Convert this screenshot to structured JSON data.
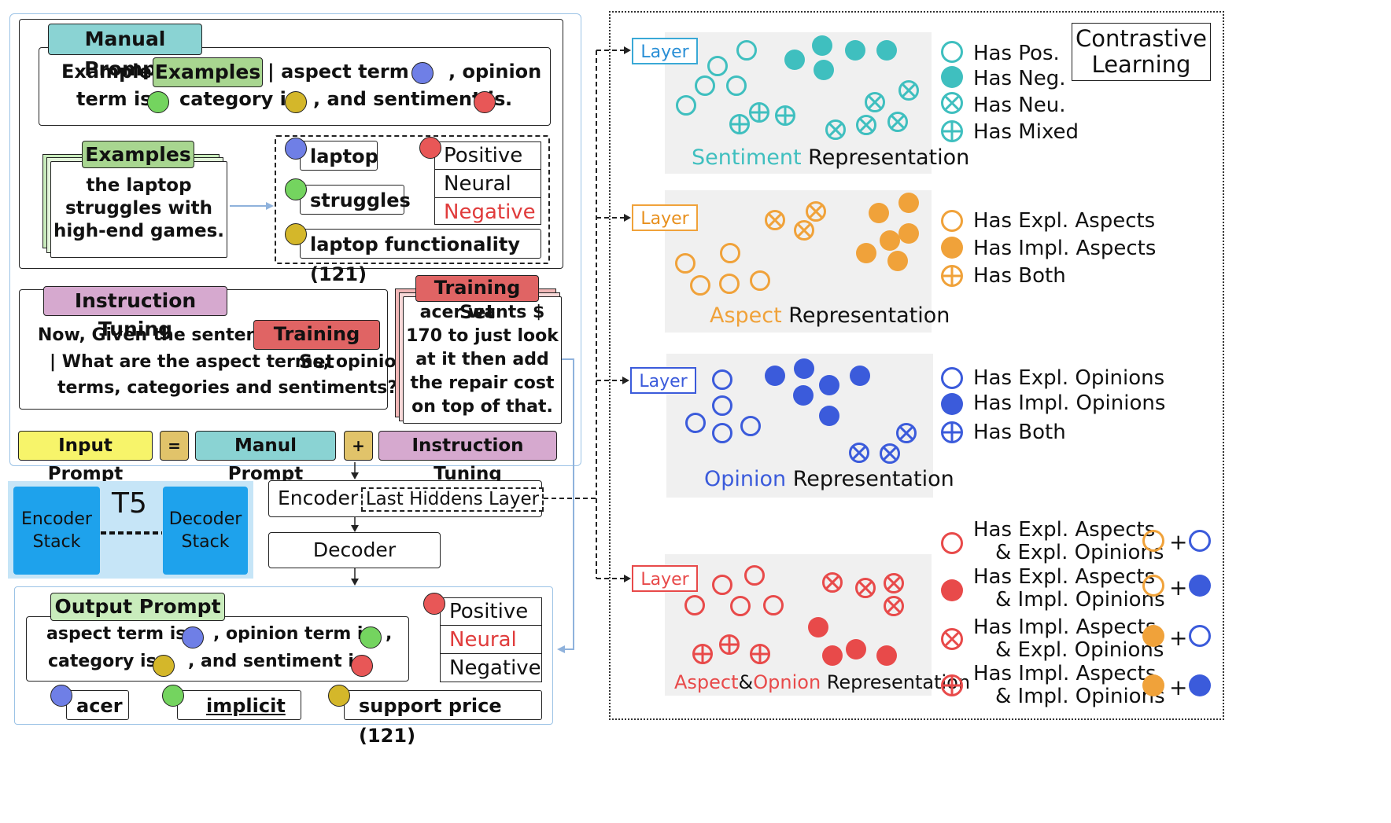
{
  "manual_prompt": {
    "tag": "Manual Prompt",
    "line1_a": "Example:",
    "line1_b": "| aspect term is",
    "line1_c": ", opinion",
    "line2_a": "term is",
    "line2_b": "category is",
    "line2_c": ", and sentiment is",
    "line2_d": ".",
    "examples_tag": "Examples"
  },
  "examples": {
    "tag": "Examples",
    "sentence": [
      "the laptop",
      "struggles with",
      "high-end games."
    ],
    "aspect": "laptop",
    "opinion": "struggles",
    "category": "laptop functionality (121)",
    "sentiments": [
      "Positive",
      "Neural",
      "Negative"
    ]
  },
  "instruction": {
    "tag": "Instruction Tuning",
    "line1": "Now, Given the sentence:",
    "training_tag": "Training Set",
    "line2": "| What are the aspect terms, opinion",
    "line3": "terms, categories and sentiments?"
  },
  "training_set": {
    "tag": "Training Set",
    "sentence": [
      "acer wants $",
      "170 to just look",
      "at it then add",
      "the repair cost",
      "on top of that."
    ]
  },
  "formula": {
    "input": "Input Prompt",
    "eq": "=",
    "manual": "Manul Prompt",
    "plus": "+",
    "instruction": "Instruction Tuning"
  },
  "t5": {
    "title": "T5",
    "encoder": [
      "Encoder",
      "Stack"
    ],
    "decoder": [
      "Decoder",
      "Stack"
    ]
  },
  "model": {
    "encoder": "Encoder",
    "hidden": "Last Hiddens Layer",
    "decoder": "Decoder"
  },
  "output_prompt": {
    "tag": "Output Prompt",
    "line1_a": "aspect term is",
    "line1_b": ", opinion term is",
    "line1_c": ",",
    "line2_a": "category is",
    "line2_b": ", and sentiment is",
    "aspect": "acer",
    "opinion": "implicit",
    "category": "support price (121)",
    "sentiments": [
      "Positive",
      "Neural",
      "Negative"
    ]
  },
  "contrastive": {
    "title": [
      "Contrastive",
      "Learning"
    ],
    "layer_label": "Layer",
    "panels": [
      {
        "title_colored": "Sentiment",
        "title_rest": " Representation",
        "color": "#3fbfbf",
        "legend": [
          "Has Pos.",
          "Has Neg.",
          "Has Neu.",
          "Has Mixed"
        ]
      },
      {
        "title_colored": "Aspect",
        "title_rest": " Representation",
        "color": "#f0a23a",
        "legend": [
          "Has Expl. Aspects",
          "Has Impl. Aspects",
          "Has Both"
        ]
      },
      {
        "title_colored": "Opinion",
        "title_rest": " Representation",
        "color": "#3b5bdb",
        "legend": [
          "Has Expl. Opinions",
          "Has Impl. Opinions",
          "Has Both"
        ]
      },
      {
        "title_colored_a": "Aspect",
        "title_amp": "&",
        "title_colored_b": "Opnion",
        "title_rest": " Representation",
        "color": "#e84a4a",
        "legend": [
          [
            "Has Expl. Aspects",
            "& Expl. Opinions"
          ],
          [
            "Has Expl. Aspects",
            "& Impl. Opinions"
          ],
          [
            "Has Impl. Aspects",
            "& Expl. Opinions"
          ],
          [
            "Has Impl. Aspects",
            "& Impl. Opinions"
          ]
        ],
        "plus": "+"
      }
    ]
  },
  "colors": {
    "teal": "#3fbfbf",
    "orange": "#f0a23a",
    "blue": "#3b5bdb",
    "red": "#e84a4a"
  }
}
